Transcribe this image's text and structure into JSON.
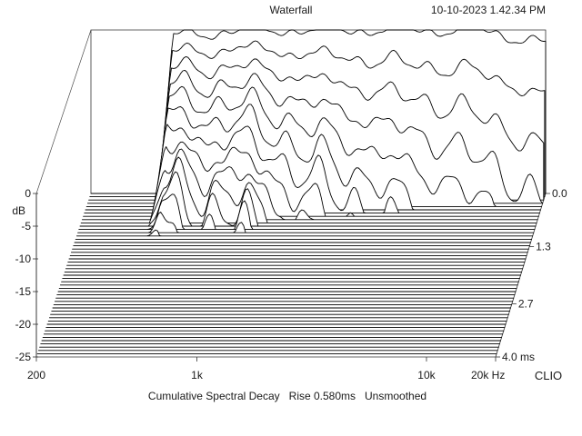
{
  "header": {
    "title": "Waterfall",
    "timestamp": "10-10-2023 1.42.34 PM"
  },
  "footer": {
    "caption": "Cumulative Spectral Decay   Rise 0.580ms   Unsmoothed",
    "brand": "CLIO"
  },
  "chart_data": {
    "type": "waterfall",
    "title": "Waterfall",
    "x_scale": "log",
    "xlim": [
      200,
      20000
    ],
    "ylim": [
      -25,
      0
    ],
    "zlim": [
      0,
      4.0
    ],
    "x_ticks": [
      {
        "value": 200,
        "label": "200"
      },
      {
        "value": 1000,
        "label": "1k"
      },
      {
        "value": 10000,
        "label": "10k"
      },
      {
        "value": 20000,
        "label": "20k Hz"
      }
    ],
    "y_ticks": [
      {
        "value": 0,
        "label": "0"
      },
      {
        "value": -5,
        "label": "-5"
      },
      {
        "value": -10,
        "label": "-10"
      },
      {
        "value": -15,
        "label": "-15"
      },
      {
        "value": -20,
        "label": "-20"
      },
      {
        "value": -25,
        "label": "-25"
      }
    ],
    "y_unit": "dB",
    "z_ticks": [
      {
        "value": 0.0,
        "label": "0.0"
      },
      {
        "value": 1.3,
        "label": "1.3"
      },
      {
        "value": 2.7,
        "label": "2.7"
      },
      {
        "value": 4.0,
        "label": "4.0  ms"
      }
    ],
    "slices": 50,
    "slice_time_step_ms": 0.08,
    "decay_envelope_dB": [
      {
        "freq": 400,
        "dB_at_0ms": -1,
        "ms_to_floor": 1.2
      },
      {
        "freq": 1000,
        "dB_at_0ms": 0,
        "ms_to_floor": 1.0
      },
      {
        "freq": 2000,
        "dB_at_0ms": 0,
        "ms_to_floor": 0.7
      },
      {
        "freq": 5000,
        "dB_at_0ms": 0,
        "ms_to_floor": 0.5
      },
      {
        "freq": 10000,
        "dB_at_0ms": 0,
        "ms_to_floor": 0.4
      },
      {
        "freq": 20000,
        "dB_at_0ms": -2,
        "ms_to_floor": 0.3
      }
    ]
  }
}
